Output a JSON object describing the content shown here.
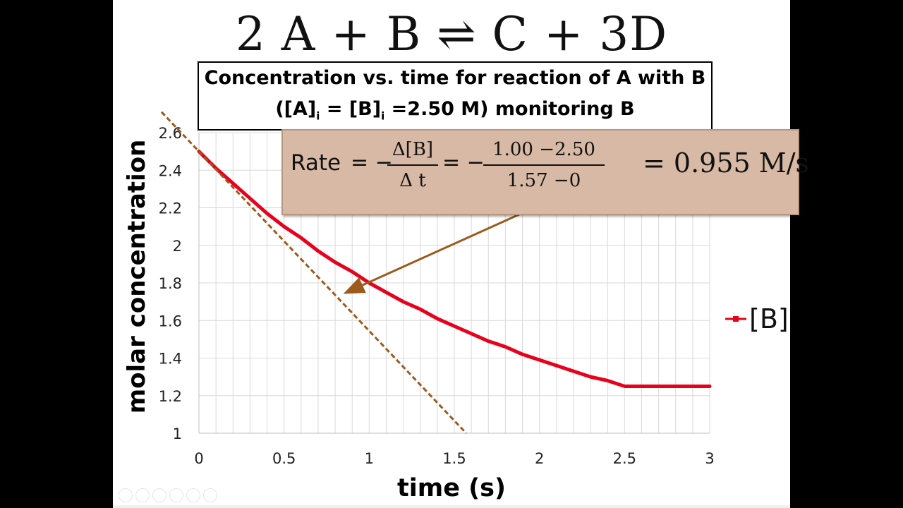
{
  "slide": {
    "equation": "2 A + B  ⇌ C + 3D",
    "title_line1": "Concentration vs. time for reaction of A with B",
    "title_line2_a": "([A]",
    "title_line2_sub1": "i",
    "title_line2_b": " = [B]",
    "title_line2_sub2": "i",
    "title_line2_c": " =2.50 M) monitoring B",
    "rate": {
      "word": "Rate",
      "eq1": "= −",
      "frac1_num": "Δ[B]",
      "frac1_den": "Δ t",
      "eq2": "= −",
      "frac2_num": "1.00 −2.50",
      "frac2_den": "1.57 −0",
      "result": "= 0.955 M/s"
    }
  },
  "chart_data": {
    "type": "line",
    "title": "",
    "xlabel": "time (s)",
    "ylabel": "molar concentration",
    "xlim": [
      0,
      3
    ],
    "ylim": [
      1,
      2.6
    ],
    "x_ticks": [
      "0",
      "0.5",
      "1",
      "1.5",
      "2",
      "2.5",
      "3"
    ],
    "y_ticks": [
      "1",
      "1.2",
      "1.4",
      "1.6",
      "1.8",
      "2",
      "2.2",
      "2.4",
      "2.6"
    ],
    "grid": true,
    "legend_position": "right",
    "series": [
      {
        "name": "[B]",
        "color": "#e8001c",
        "x": [
          0,
          0.1,
          0.2,
          0.3,
          0.4,
          0.5,
          0.6,
          0.7,
          0.8,
          0.9,
          1.0,
          1.1,
          1.2,
          1.3,
          1.4,
          1.5,
          1.6,
          1.7,
          1.8,
          1.9,
          2.0,
          2.1,
          2.2,
          2.3,
          2.4,
          2.5,
          2.6,
          2.7,
          2.8,
          2.9,
          3.0
        ],
        "y": [
          2.5,
          2.41,
          2.33,
          2.25,
          2.17,
          2.1,
          2.04,
          1.97,
          1.91,
          1.86,
          1.8,
          1.75,
          1.7,
          1.66,
          1.61,
          1.57,
          1.53,
          1.49,
          1.46,
          1.42,
          1.39,
          1.36,
          1.33,
          1.3,
          1.28,
          1.25,
          1.25,
          1.25,
          1.25,
          1.25,
          1.25
        ]
      }
    ],
    "tangent": {
      "color": "#9c5a1c",
      "x": [
        -0.22,
        1.57
      ],
      "y": [
        2.71,
        1.0
      ]
    },
    "arrow_color": "#9c5a1c"
  }
}
